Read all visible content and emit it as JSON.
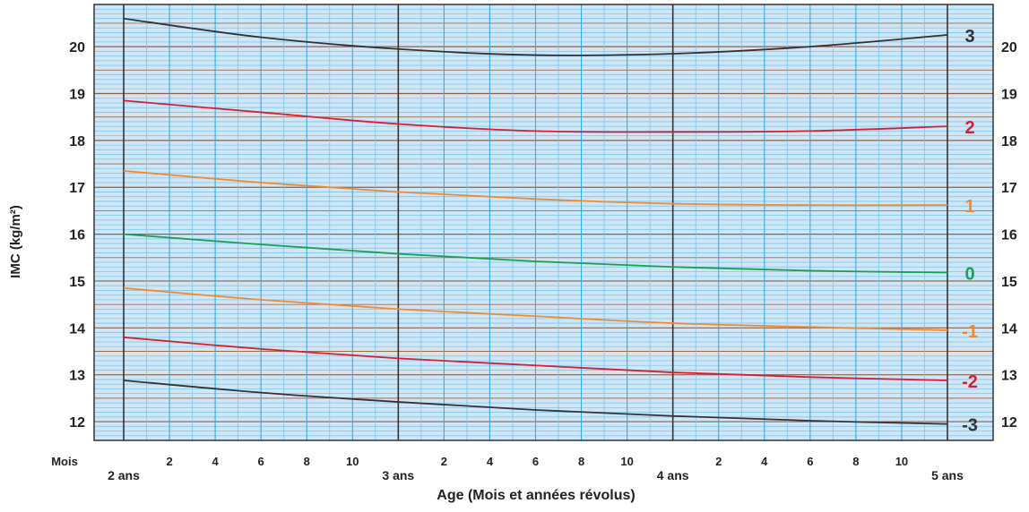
{
  "chart_data": {
    "type": "line",
    "title": "",
    "xlabel": "Age (Mois et années révolus)",
    "ylabel": "IMC (kg/m²)",
    "xlim": [
      24,
      60
    ],
    "ylim": [
      11.6,
      20.9
    ],
    "grid": true,
    "y_ticks": [
      "12",
      "13",
      "14",
      "15",
      "16",
      "17",
      "18",
      "19",
      "20"
    ],
    "month_row_label": "Mois",
    "month_ticks": [
      {
        "month": 26,
        "label": "2"
      },
      {
        "month": 28,
        "label": "4"
      },
      {
        "month": 30,
        "label": "6"
      },
      {
        "month": 32,
        "label": "8"
      },
      {
        "month": 34,
        "label": "10"
      },
      {
        "month": 38,
        "label": "2"
      },
      {
        "month": 40,
        "label": "4"
      },
      {
        "month": 42,
        "label": "6"
      },
      {
        "month": 44,
        "label": "8"
      },
      {
        "month": 46,
        "label": "10"
      },
      {
        "month": 50,
        "label": "2"
      },
      {
        "month": 52,
        "label": "4"
      },
      {
        "month": 54,
        "label": "6"
      },
      {
        "month": 56,
        "label": "8"
      },
      {
        "month": 58,
        "label": "10"
      }
    ],
    "year_ticks": [
      {
        "month": 24,
        "label": "2 ans"
      },
      {
        "month": 36,
        "label": "3 ans"
      },
      {
        "month": 48,
        "label": "4 ans"
      },
      {
        "month": 60,
        "label": "5 ans"
      }
    ],
    "x": [
      24,
      30,
      36,
      42,
      48,
      54,
      60
    ],
    "series": [
      {
        "name": "3",
        "color": "#333333",
        "values": [
          20.6,
          20.2,
          19.95,
          19.82,
          19.85,
          20.0,
          20.25
        ]
      },
      {
        "name": "2",
        "color": "#d42030",
        "values": [
          18.85,
          18.6,
          18.35,
          18.2,
          18.18,
          18.2,
          18.3
        ]
      },
      {
        "name": "1",
        "color": "#f08a30",
        "values": [
          17.35,
          17.1,
          16.9,
          16.75,
          16.65,
          16.62,
          16.62
        ]
      },
      {
        "name": "0",
        "color": "#1aa050",
        "values": [
          16.0,
          15.78,
          15.58,
          15.42,
          15.3,
          15.22,
          15.18
        ]
      },
      {
        "name": "-1",
        "color": "#f08a30",
        "values": [
          14.85,
          14.6,
          14.4,
          14.25,
          14.1,
          14.02,
          13.95
        ]
      },
      {
        "name": "-2",
        "color": "#d42030",
        "values": [
          13.8,
          13.55,
          13.35,
          13.2,
          13.05,
          12.95,
          12.88
        ]
      },
      {
        "name": "-3",
        "color": "#333333",
        "values": [
          12.88,
          12.62,
          12.42,
          12.25,
          12.12,
          12.02,
          11.95
        ]
      }
    ]
  }
}
